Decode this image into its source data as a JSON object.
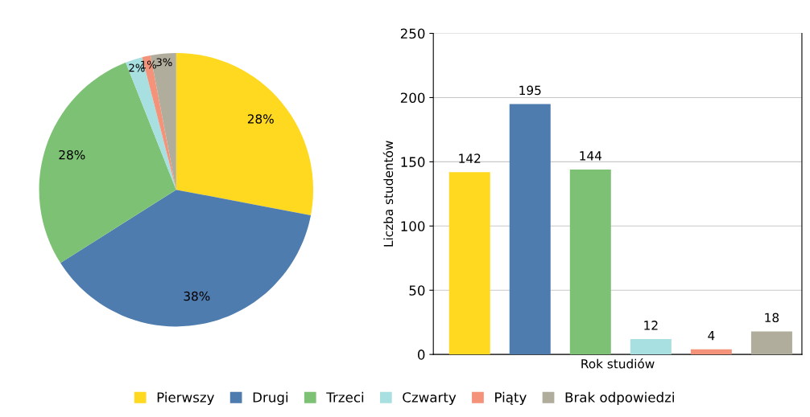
{
  "chart_data": [
    {
      "type": "pie",
      "categories": [
        "Pierwszy",
        "Drugi",
        "Trzeci",
        "Czwarty",
        "Piąty",
        "Brak odpowiedzi"
      ],
      "values": [
        28,
        38,
        28,
        2,
        1,
        3
      ],
      "colors": [
        "#ffd820",
        "#4e7cae",
        "#7dc274",
        "#a8dfe0",
        "#f4937a",
        "#b0ad9c"
      ],
      "value_labels": [
        "28%",
        "38%",
        "28%",
        "2%",
        "1%",
        "3%"
      ],
      "legend": "bottom"
    },
    {
      "type": "bar",
      "categories": [
        null,
        null,
        null,
        null,
        null,
        null
      ],
      "values": [
        142,
        195,
        144,
        12,
        4,
        18
      ],
      "colors": [
        "#ffd820",
        "#4e7cae",
        "#7dc274",
        "#a8dfe0",
        "#f4937a",
        "#b0ad9c"
      ],
      "xlabel": "Rok studiów",
      "ylabel": "Liczba studentów",
      "ylim": [
        0,
        250
      ],
      "yticks": [
        0,
        50,
        100,
        150,
        200,
        250
      ],
      "grid": "y",
      "data_labels": true,
      "tick_labels": "y"
    }
  ]
}
